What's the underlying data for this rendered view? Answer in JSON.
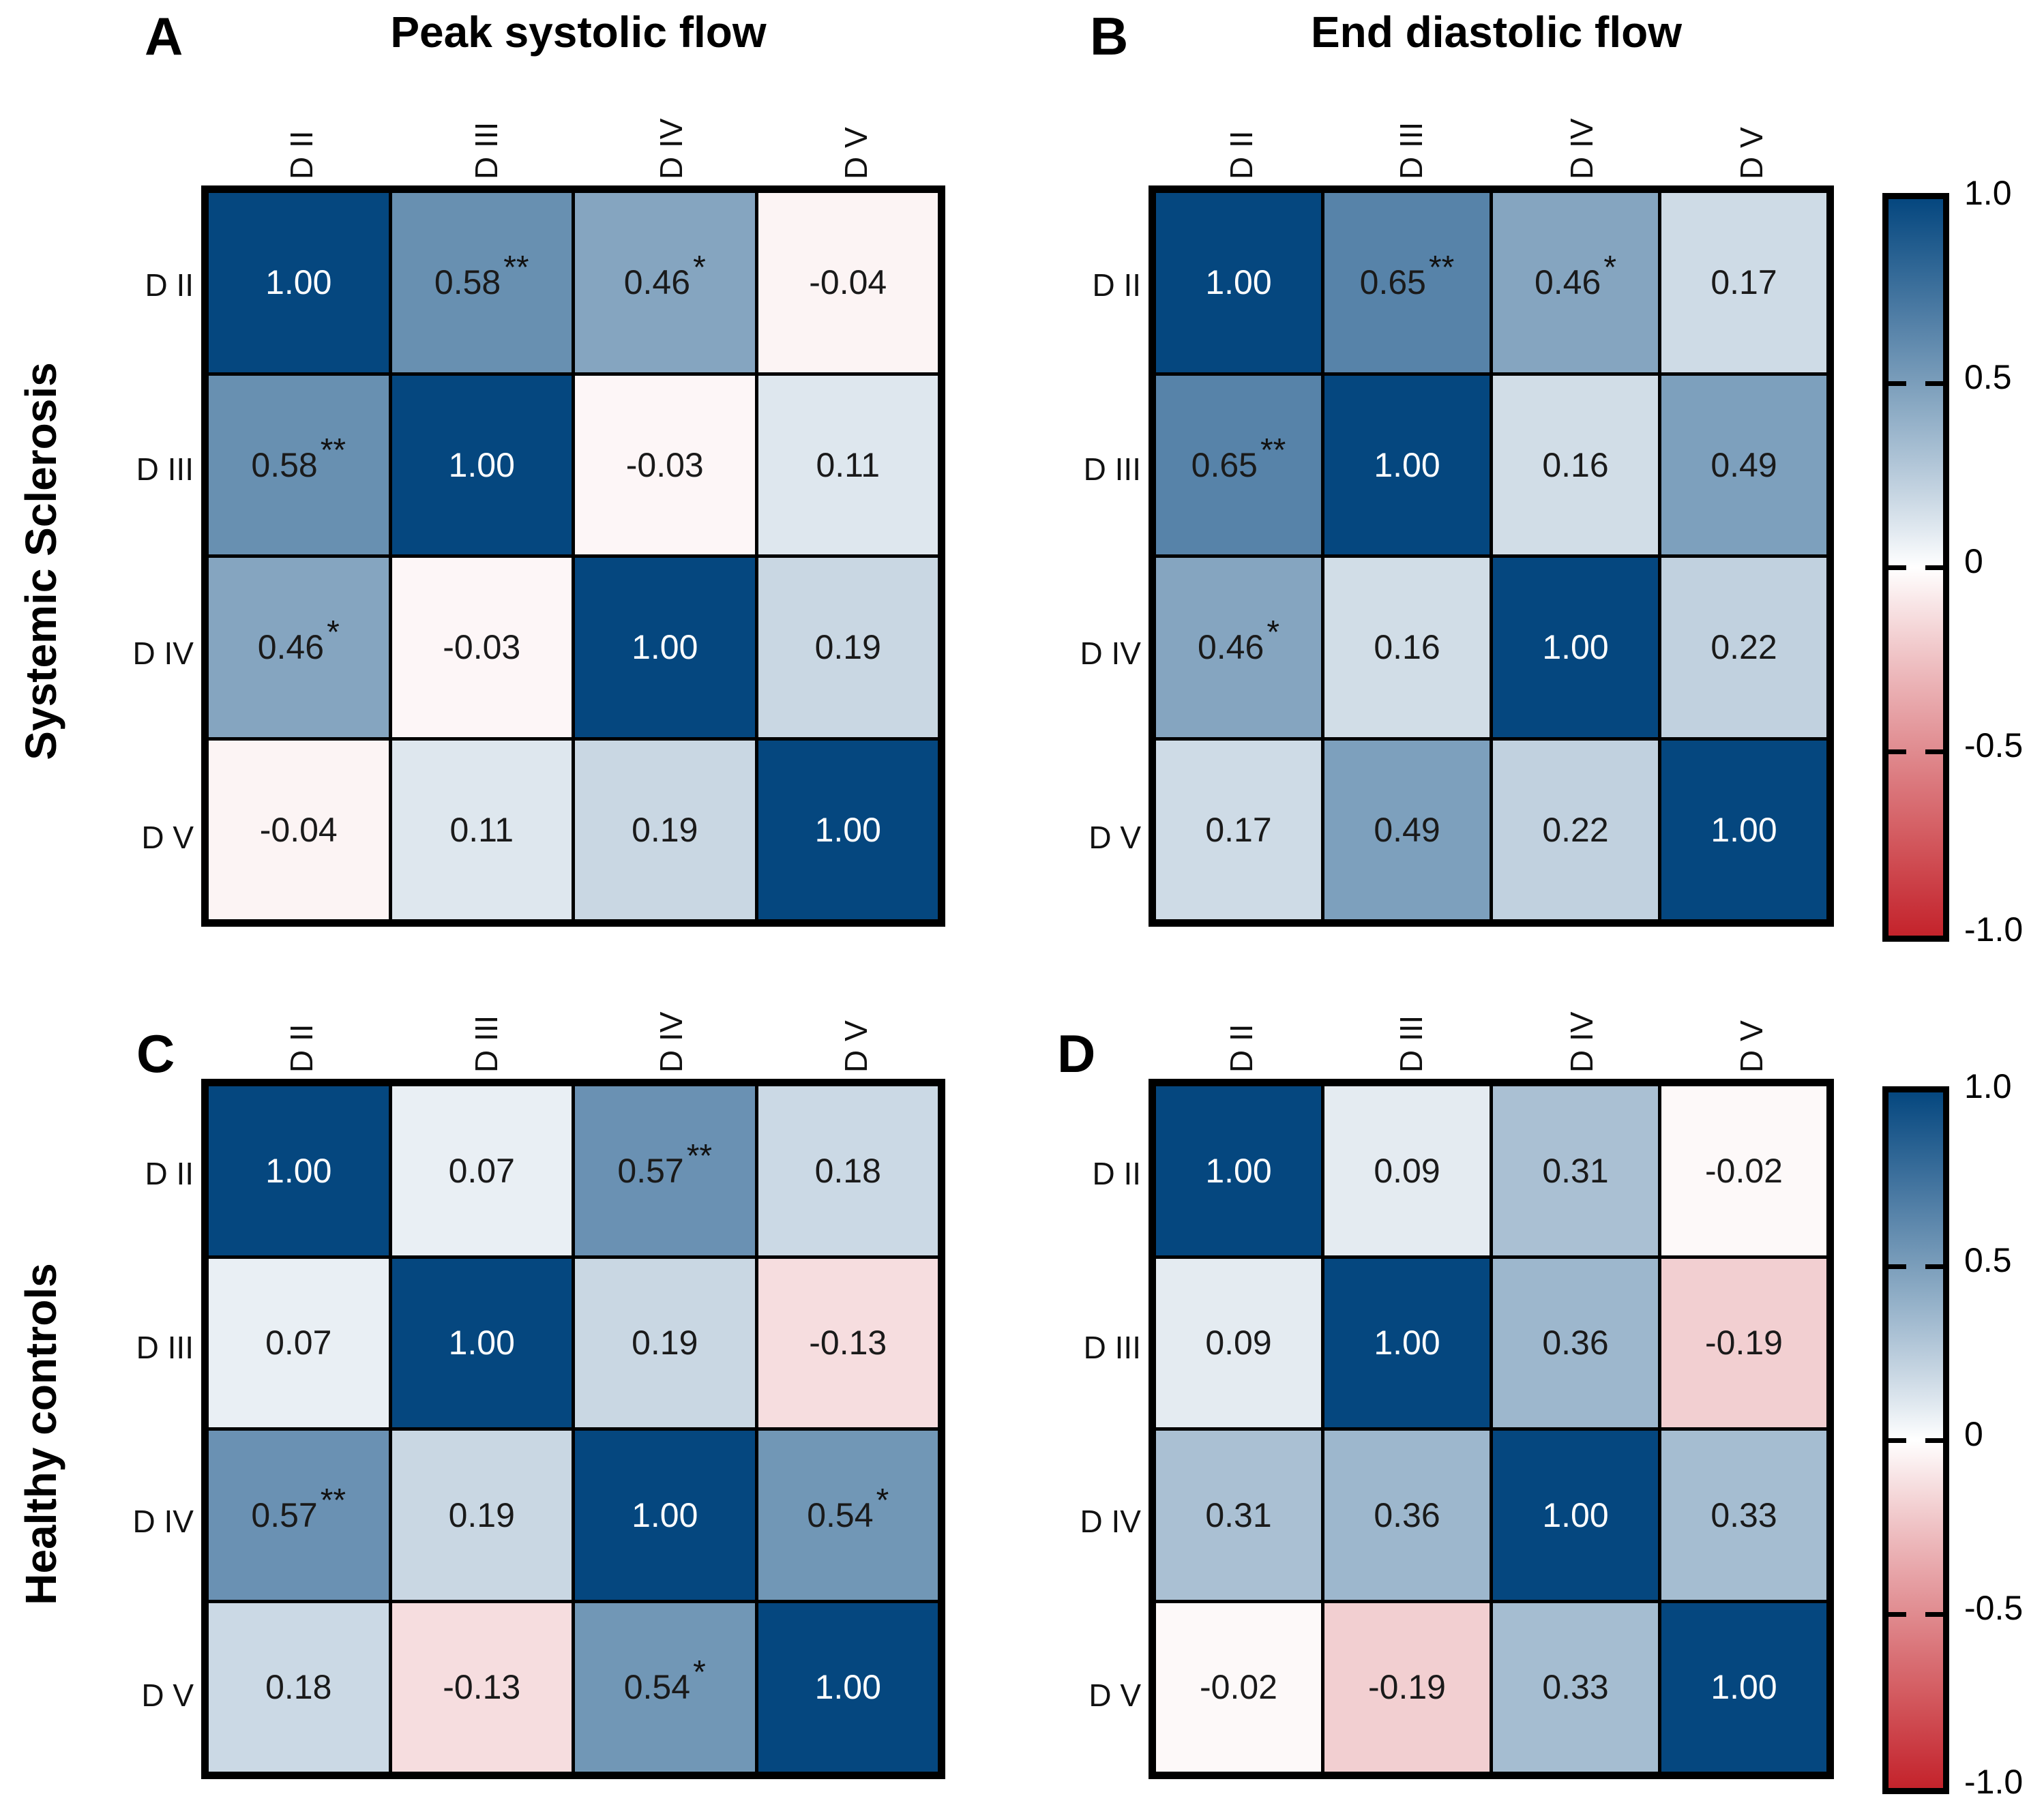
{
  "figure": {
    "groups": [
      "Systemic Sclerosis",
      "Healthy controls"
    ],
    "column_titles": [
      "Peak systolic flow",
      "End diastolic flow"
    ],
    "significance_legend": {
      "single_asterisk": "*",
      "double_asterisk": "**"
    }
  },
  "chart_data": [
    {
      "type": "heatmap",
      "panel": "A",
      "title": "Peak systolic flow",
      "group": "Systemic Sclerosis",
      "rows": [
        "D II",
        "D III",
        "D IV",
        "D V"
      ],
      "cols": [
        "D II",
        "D III",
        "D IV",
        "D V"
      ],
      "values": [
        [
          1.0,
          0.58,
          0.46,
          -0.04
        ],
        [
          0.58,
          1.0,
          -0.03,
          0.11
        ],
        [
          0.46,
          -0.03,
          1.0,
          0.19
        ],
        [
          -0.04,
          0.11,
          0.19,
          1.0
        ]
      ],
      "sig": [
        [
          "",
          "**",
          "*",
          ""
        ],
        [
          "**",
          "",
          "",
          ""
        ],
        [
          "*",
          "",
          "",
          ""
        ],
        [
          "",
          "",
          "",
          ""
        ]
      ],
      "vmin": -1,
      "vmax": 1
    },
    {
      "type": "heatmap",
      "panel": "B",
      "title": "End diastolic flow",
      "group": "Systemic Sclerosis",
      "rows": [
        "D II",
        "D III",
        "D IV",
        "D V"
      ],
      "cols": [
        "D II",
        "D III",
        "D IV",
        "D V"
      ],
      "values": [
        [
          1.0,
          0.65,
          0.46,
          0.17
        ],
        [
          0.65,
          1.0,
          0.16,
          0.49
        ],
        [
          0.46,
          0.16,
          1.0,
          0.22
        ],
        [
          0.17,
          0.49,
          0.22,
          1.0
        ]
      ],
      "sig": [
        [
          "",
          "**",
          "*",
          ""
        ],
        [
          "**",
          "",
          "",
          ""
        ],
        [
          "*",
          "",
          "",
          ""
        ],
        [
          "",
          "",
          "",
          ""
        ]
      ],
      "vmin": -1,
      "vmax": 1
    },
    {
      "type": "heatmap",
      "panel": "C",
      "title": "",
      "group": "Healthy controls",
      "rows": [
        "D II",
        "D III",
        "D IV",
        "D V"
      ],
      "cols": [
        "D II",
        "D III",
        "D IV",
        "D V"
      ],
      "values": [
        [
          1.0,
          0.07,
          0.57,
          0.18
        ],
        [
          0.07,
          1.0,
          0.19,
          -0.13
        ],
        [
          0.57,
          0.19,
          1.0,
          0.54
        ],
        [
          0.18,
          -0.13,
          0.54,
          1.0
        ]
      ],
      "sig": [
        [
          "",
          "",
          "**",
          ""
        ],
        [
          "",
          "",
          "",
          ""
        ],
        [
          "**",
          "",
          "",
          "*"
        ],
        [
          "",
          "",
          "*",
          ""
        ]
      ],
      "vmin": -1,
      "vmax": 1
    },
    {
      "type": "heatmap",
      "panel": "D",
      "title": "",
      "group": "Healthy controls",
      "rows": [
        "D II",
        "D III",
        "D IV",
        "D V"
      ],
      "cols": [
        "D II",
        "D III",
        "D IV",
        "D V"
      ],
      "values": [
        [
          1.0,
          0.09,
          0.31,
          -0.02
        ],
        [
          0.09,
          1.0,
          0.36,
          -0.19
        ],
        [
          0.31,
          0.36,
          1.0,
          0.33
        ],
        [
          -0.02,
          -0.19,
          0.33,
          1.0
        ]
      ],
      "sig": [
        [
          "",
          "",
          "",
          ""
        ],
        [
          "",
          "",
          "",
          ""
        ],
        [
          "",
          "",
          "",
          ""
        ],
        [
          "",
          "",
          "",
          ""
        ]
      ],
      "vmin": -1,
      "vmax": 1
    }
  ],
  "colorbar": {
    "tick_labels": [
      "1.0",
      "0.5",
      "0",
      "-0.5",
      "-1.0"
    ],
    "vmax": 1,
    "vmin": -1,
    "color_positive": "#05477f",
    "color_zero": "#ffffff",
    "color_negative": "#c4232b"
  }
}
